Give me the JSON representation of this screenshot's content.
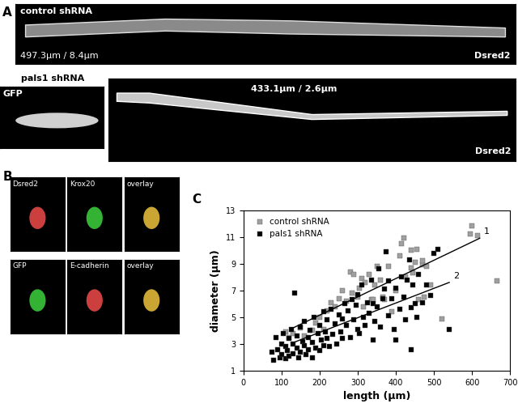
{
  "panels": {
    "A": {
      "label": "A",
      "control": {
        "title": "control shRNA",
        "measure": "497.3μm / 8.4μm",
        "channel": "Dsred2"
      },
      "pals1_title": "pals1 shRNA",
      "pals1_gfp": {
        "channel": "GFP"
      },
      "pals1": {
        "measure": "433.1μm / 2.6μm",
        "channel": "Dsred2"
      }
    },
    "B": {
      "label": "B",
      "rows": [
        [
          "Dsred2",
          "Krox20",
          "overlay"
        ],
        [
          "GFP",
          "E-cadherin",
          "overlay"
        ]
      ]
    },
    "C": {
      "label": "C"
    }
  },
  "chart_data": {
    "type": "scatter",
    "x_label": "length (μm)",
    "y_label": "diameter (μm)",
    "xlim": [
      0,
      700
    ],
    "xticks": [
      0,
      100,
      200,
      300,
      400,
      500,
      600,
      700
    ],
    "ylim": [
      1,
      13
    ],
    "yticks": [
      1,
      3,
      5,
      7,
      9,
      11,
      13
    ],
    "legend": "upper left",
    "series": [
      {
        "name": "control shRNA",
        "color": "#a0a0a0",
        "marker": "square",
        "x": [
          110,
          120,
          130,
          150,
          160,
          180,
          190,
          200,
          210,
          220,
          230,
          240,
          250,
          260,
          270,
          280,
          285,
          290,
          300,
          305,
          310,
          315,
          320,
          330,
          335,
          340,
          345,
          350,
          360,
          365,
          370,
          380,
          390,
          400,
          410,
          415,
          420,
          425,
          440,
          445,
          450,
          455,
          460,
          470,
          475,
          480,
          490,
          520,
          600,
          595,
          615,
          665,
          440,
          470
        ],
        "y": [
          3.9,
          3.5,
          3.8,
          4.2,
          3.6,
          4.0,
          4.6,
          5.0,
          4.1,
          5.5,
          6.1,
          5.8,
          6.4,
          7.0,
          6.2,
          8.4,
          6.8,
          8.2,
          6.5,
          7.2,
          7.9,
          5.8,
          7.6,
          8.2,
          6.3,
          6.3,
          7.4,
          8.8,
          7.8,
          6.5,
          6.3,
          8.8,
          5.4,
          7.0,
          9.6,
          10.5,
          10.9,
          8.0,
          8.7,
          8.3,
          9.1,
          10.1,
          6.3,
          8.9,
          6.5,
          8.8,
          7.4,
          4.9,
          11.8,
          11.2,
          11.1,
          7.7,
          10.0,
          9.2
        ]
      },
      {
        "name": "pals1 shRNA",
        "color": "#000000",
        "marker": "square",
        "x": [
          75,
          80,
          85,
          90,
          95,
          100,
          100,
          105,
          110,
          110,
          115,
          120,
          120,
          125,
          130,
          130,
          135,
          140,
          140,
          145,
          150,
          150,
          155,
          160,
          160,
          165,
          170,
          170,
          175,
          180,
          180,
          185,
          190,
          195,
          200,
          200,
          205,
          210,
          210,
          215,
          220,
          220,
          225,
          230,
          235,
          240,
          245,
          250,
          255,
          260,
          260,
          265,
          270,
          275,
          280,
          285,
          290,
          295,
          300,
          300,
          305,
          310,
          315,
          320,
          325,
          330,
          335,
          340,
          340,
          345,
          350,
          355,
          360,
          365,
          370,
          375,
          380,
          380,
          390,
          395,
          400,
          400,
          410,
          415,
          420,
          425,
          430,
          435,
          440,
          440,
          445,
          450,
          455,
          460,
          470,
          480,
          490,
          500,
          510,
          540
        ],
        "y": [
          2.4,
          1.8,
          3.5,
          2.6,
          2.0,
          3.0,
          2.2,
          3.8,
          2.8,
          1.9,
          2.5,
          3.4,
          2.1,
          4.1,
          2.3,
          3.0,
          6.8,
          2.7,
          3.6,
          2.0,
          4.3,
          2.4,
          3.2,
          2.9,
          4.7,
          2.2,
          3.5,
          2.6,
          4.0,
          3.1,
          2.0,
          5.0,
          2.7,
          3.8,
          4.4,
          2.5,
          3.3,
          5.4,
          2.9,
          3.9,
          3.4,
          4.8,
          2.8,
          5.6,
          3.7,
          4.5,
          3.0,
          5.2,
          3.9,
          4.9,
          3.4,
          6.0,
          4.4,
          5.5,
          3.5,
          6.3,
          4.8,
          5.9,
          4.1,
          6.7,
          3.8,
          7.4,
          5.0,
          4.4,
          6.1,
          5.3,
          7.8,
          3.3,
          6.0,
          4.7,
          5.8,
          8.6,
          4.3,
          6.4,
          7.1,
          9.9,
          5.1,
          7.7,
          6.4,
          4.1,
          7.2,
          3.3,
          5.6,
          8.0,
          6.5,
          4.8,
          7.8,
          9.3,
          2.6,
          5.7,
          7.4,
          6.0,
          5.0,
          8.2,
          6.1,
          7.4,
          6.6,
          9.8,
          10.1,
          4.1
        ]
      }
    ],
    "trend_lines": [
      {
        "label": "1",
        "color": "#000000",
        "x": [
          130,
          620
        ],
        "y": [
          4.2,
          10.9
        ]
      },
      {
        "label": "2",
        "color": "#000000",
        "x": [
          130,
          540
        ],
        "y": [
          3.1,
          7.6
        ]
      }
    ]
  }
}
